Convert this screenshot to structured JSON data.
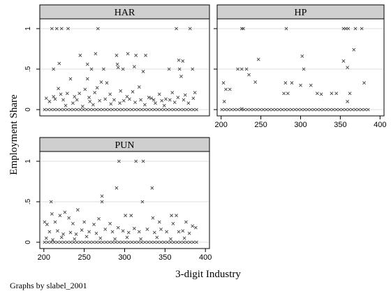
{
  "figure": {
    "ylabel": "Employment Share",
    "xlabel": "3-digit Industry",
    "note": "Graphs by slabel_2001"
  },
  "chart_data": {
    "type": "scatter",
    "marker": "x",
    "xlim": [
      195,
      405
    ],
    "ylim": [
      0,
      1
    ],
    "yticks": [
      0,
      0.5,
      1
    ],
    "yticklabels": [
      "0",
      ".5",
      "1"
    ],
    "xticks": [
      200,
      250,
      300,
      350,
      400
    ],
    "xticklabels": [
      "200",
      "250",
      "300",
      "350",
      "400"
    ],
    "grid": true,
    "panels": [
      {
        "title": "HAR",
        "xticks_shown": false,
        "points": [
          [
            210,
            1
          ],
          [
            216,
            1
          ],
          [
            222,
            1
          ],
          [
            230,
            1
          ],
          [
            267,
            1
          ],
          [
            364,
            1
          ],
          [
            381,
            1
          ],
          [
            212,
            0.5
          ],
          [
            259,
            0.5
          ],
          [
            274,
            0.5
          ],
          [
            298,
            0.5
          ],
          [
            355,
            0.5
          ],
          [
            368,
            0.5
          ],
          [
            384,
            0.5
          ],
          [
            219,
            0.57
          ],
          [
            254,
            0.56
          ],
          [
            291,
            0.56
          ],
          [
            312,
            0.53
          ],
          [
            292,
            0.52
          ],
          [
            245,
            0.67
          ],
          [
            264,
            0.69
          ],
          [
            290,
            0.67
          ],
          [
            304,
            0.69
          ],
          [
            314,
            0.67
          ],
          [
            326,
            0.67
          ],
          [
            367,
            0.61
          ],
          [
            372,
            0.6
          ],
          [
            233,
            0.38
          ],
          [
            254,
            0.38
          ],
          [
            323,
            0.47
          ],
          [
            370,
            0.41
          ],
          [
            218,
            0.26
          ],
          [
            221,
            0.19
          ],
          [
            229,
            0.2
          ],
          [
            238,
            0.16
          ],
          [
            244,
            0.2
          ],
          [
            251,
            0.25
          ],
          [
            256,
            0.15
          ],
          [
            263,
            0.21
          ],
          [
            266,
            0.27
          ],
          [
            271,
            0.34
          ],
          [
            278,
            0.33
          ],
          [
            282,
            0.19
          ],
          [
            295,
            0.23
          ],
          [
            303,
            0.16
          ],
          [
            310,
            0.22
          ],
          [
            318,
            0.28
          ],
          [
            330,
            0.15
          ],
          [
            336,
            0.12
          ],
          [
            343,
            0.19
          ],
          [
            351,
            0.13
          ],
          [
            359,
            0.21
          ],
          [
            375,
            0.18
          ],
          [
            387,
            0.21
          ],
          [
            203,
            0.14
          ],
          [
            207,
            0.1
          ],
          [
            212,
            0.16
          ],
          [
            214,
            0.13
          ],
          [
            224,
            0.12
          ],
          [
            227,
            0.05
          ],
          [
            236,
            0.08
          ],
          [
            241,
            0.12
          ],
          [
            248,
            0.04
          ],
          [
            257,
            0.1
          ],
          [
            261,
            0.06
          ],
          [
            269,
            0.11
          ],
          [
            276,
            0.13
          ],
          [
            283,
            0.07
          ],
          [
            287,
            0.12
          ],
          [
            294,
            0.08
          ],
          [
            299,
            0.11
          ],
          [
            306,
            0.13
          ],
          [
            313,
            0.09
          ],
          [
            320,
            0.12
          ],
          [
            325,
            0.06
          ],
          [
            333,
            0.14
          ],
          [
            338,
            0.08
          ],
          [
            346,
            0.11
          ],
          [
            349,
            0.05
          ],
          [
            356,
            0.12
          ],
          [
            362,
            0.09
          ],
          [
            366,
            0.15
          ],
          [
            373,
            0.12
          ],
          [
            379,
            0.08
          ],
          [
            385,
            0.14
          ],
          [
            201,
            0
          ],
          [
            205,
            0
          ],
          [
            209,
            0
          ],
          [
            213,
            0
          ],
          [
            217,
            0
          ],
          [
            221,
            0
          ],
          [
            225,
            0
          ],
          [
            229,
            0
          ],
          [
            233,
            0
          ],
          [
            237,
            0
          ],
          [
            241,
            0
          ],
          [
            245,
            0
          ],
          [
            249,
            0
          ],
          [
            253,
            0
          ],
          [
            257,
            0
          ],
          [
            261,
            0
          ],
          [
            265,
            0
          ],
          [
            269,
            0
          ],
          [
            273,
            0
          ],
          [
            277,
            0
          ],
          [
            281,
            0
          ],
          [
            285,
            0
          ],
          [
            289,
            0
          ],
          [
            293,
            0
          ],
          [
            297,
            0
          ],
          [
            301,
            0
          ],
          [
            305,
            0
          ],
          [
            309,
            0
          ],
          [
            313,
            0
          ],
          [
            317,
            0
          ],
          [
            321,
            0
          ],
          [
            325,
            0
          ],
          [
            329,
            0
          ],
          [
            333,
            0
          ],
          [
            337,
            0
          ],
          [
            341,
            0
          ],
          [
            345,
            0
          ],
          [
            349,
            0
          ],
          [
            353,
            0
          ],
          [
            357,
            0
          ],
          [
            361,
            0
          ],
          [
            365,
            0
          ],
          [
            369,
            0
          ],
          [
            373,
            0
          ],
          [
            377,
            0
          ],
          [
            381,
            0
          ],
          [
            385,
            0
          ],
          [
            389,
            0
          ]
        ]
      },
      {
        "title": "HP",
        "xticks_shown": true,
        "points": [
          [
            226,
            1
          ],
          [
            228,
            1
          ],
          [
            282,
            1
          ],
          [
            354,
            1
          ],
          [
            357,
            1
          ],
          [
            360,
            1
          ],
          [
            369,
            1
          ],
          [
            377,
            1
          ],
          [
            221,
            0.5
          ],
          [
            226,
            0.5
          ],
          [
            232,
            0.5
          ],
          [
            304,
            0.5
          ],
          [
            359,
            0.52
          ],
          [
            247,
            0.62
          ],
          [
            302,
            0.66
          ],
          [
            354,
            0.6
          ],
          [
            367,
            0.74
          ],
          [
            203,
            0.33
          ],
          [
            281,
            0.33
          ],
          [
            289,
            0.33
          ],
          [
            300,
            0.3
          ],
          [
            313,
            0.3
          ],
          [
            380,
            0.33
          ],
          [
            206,
            0.25
          ],
          [
            211,
            0.25
          ],
          [
            235,
            0.43
          ],
          [
            243,
            0.34
          ],
          [
            279,
            0.2
          ],
          [
            284,
            0.2
          ],
          [
            321,
            0.2
          ],
          [
            326,
            0.19
          ],
          [
            339,
            0.2
          ],
          [
            345,
            0.2
          ],
          [
            362,
            0.2
          ],
          [
            204,
            0.1
          ],
          [
            359,
            0.1
          ],
          [
            226,
            0.01
          ],
          [
            201,
            0
          ],
          [
            205,
            0
          ],
          [
            209,
            0
          ],
          [
            213,
            0
          ],
          [
            217,
            0
          ],
          [
            221,
            0
          ],
          [
            225,
            0
          ],
          [
            229,
            0
          ],
          [
            233,
            0
          ],
          [
            237,
            0
          ],
          [
            241,
            0
          ],
          [
            245,
            0
          ],
          [
            249,
            0
          ],
          [
            253,
            0
          ],
          [
            257,
            0
          ],
          [
            261,
            0
          ],
          [
            265,
            0
          ],
          [
            269,
            0
          ],
          [
            273,
            0
          ],
          [
            277,
            0
          ],
          [
            281,
            0
          ],
          [
            285,
            0
          ],
          [
            289,
            0
          ],
          [
            293,
            0
          ],
          [
            297,
            0
          ],
          [
            301,
            0
          ],
          [
            305,
            0
          ],
          [
            309,
            0
          ],
          [
            313,
            0
          ],
          [
            317,
            0
          ],
          [
            321,
            0
          ],
          [
            325,
            0
          ],
          [
            329,
            0
          ],
          [
            333,
            0
          ],
          [
            337,
            0
          ],
          [
            341,
            0
          ],
          [
            345,
            0
          ],
          [
            349,
            0
          ],
          [
            353,
            0
          ],
          [
            357,
            0
          ],
          [
            361,
            0
          ],
          [
            365,
            0
          ],
          [
            369,
            0
          ],
          [
            373,
            0
          ],
          [
            377,
            0
          ],
          [
            381,
            0
          ],
          [
            385,
            0
          ]
        ]
      },
      {
        "title": "PUN",
        "xticks_shown": true,
        "points": [
          [
            293,
            1
          ],
          [
            314,
            1
          ],
          [
            323,
            1
          ],
          [
            290,
            0.67
          ],
          [
            334,
            0.67
          ],
          [
            272,
            0.57
          ],
          [
            272,
            0.5
          ],
          [
            209,
            0.5
          ],
          [
            322,
            0.5
          ],
          [
            210,
            0.35
          ],
          [
            231,
            0.3
          ],
          [
            242,
            0.4
          ],
          [
            301,
            0.33
          ],
          [
            308,
            0.33
          ],
          [
            358,
            0.33
          ],
          [
            364,
            0.33
          ],
          [
            335,
            0.3
          ],
          [
            201,
            0.25
          ],
          [
            204,
            0.22
          ],
          [
            214,
            0.25
          ],
          [
            220,
            0.33
          ],
          [
            226,
            0.37
          ],
          [
            236,
            0.23
          ],
          [
            250,
            0.25
          ],
          [
            262,
            0.22
          ],
          [
            268,
            0.29
          ],
          [
            282,
            0.23
          ],
          [
            343,
            0.25
          ],
          [
            360,
            0.23
          ],
          [
            376,
            0.25
          ],
          [
            384,
            0.2
          ],
          [
            388,
            0.18
          ],
          [
            207,
            0.13
          ],
          [
            217,
            0.14
          ],
          [
            224,
            0.1
          ],
          [
            233,
            0.12
          ],
          [
            240,
            0.1
          ],
          [
            247,
            0.15
          ],
          [
            256,
            0.13
          ],
          [
            265,
            0.11
          ],
          [
            276,
            0.16
          ],
          [
            285,
            0.13
          ],
          [
            292,
            0.18
          ],
          [
            298,
            0.14
          ],
          [
            305,
            0.12
          ],
          [
            312,
            0.17
          ],
          [
            318,
            0.13
          ],
          [
            328,
            0.16
          ],
          [
            337,
            0.12
          ],
          [
            345,
            0.16
          ],
          [
            352,
            0.13
          ],
          [
            367,
            0.13
          ],
          [
            372,
            0.14
          ],
          [
            380,
            0.11
          ],
          [
            203,
            0.05
          ],
          [
            211,
            0.03
          ],
          [
            222,
            0.06
          ],
          [
            238,
            0.04
          ],
          [
            253,
            0.07
          ],
          [
            270,
            0.05
          ],
          [
            288,
            0.04
          ],
          [
            303,
            0.06
          ],
          [
            320,
            0.04
          ],
          [
            340,
            0.06
          ],
          [
            357,
            0.04
          ],
          [
            374,
            0.05
          ],
          [
            201,
            0
          ],
          [
            205,
            0
          ],
          [
            209,
            0
          ],
          [
            213,
            0
          ],
          [
            217,
            0
          ],
          [
            221,
            0
          ],
          [
            225,
            0
          ],
          [
            229,
            0
          ],
          [
            233,
            0
          ],
          [
            237,
            0
          ],
          [
            241,
            0
          ],
          [
            245,
            0
          ],
          [
            249,
            0
          ],
          [
            253,
            0
          ],
          [
            257,
            0
          ],
          [
            261,
            0
          ],
          [
            265,
            0
          ],
          [
            269,
            0
          ],
          [
            273,
            0
          ],
          [
            277,
            0
          ],
          [
            281,
            0
          ],
          [
            285,
            0
          ],
          [
            289,
            0
          ],
          [
            293,
            0
          ],
          [
            297,
            0
          ],
          [
            301,
            0
          ],
          [
            305,
            0
          ],
          [
            309,
            0
          ],
          [
            313,
            0
          ],
          [
            317,
            0
          ],
          [
            321,
            0
          ],
          [
            325,
            0
          ],
          [
            329,
            0
          ],
          [
            333,
            0
          ],
          [
            337,
            0
          ],
          [
            341,
            0
          ],
          [
            345,
            0
          ],
          [
            349,
            0
          ],
          [
            353,
            0
          ],
          [
            357,
            0
          ],
          [
            361,
            0
          ],
          [
            365,
            0
          ],
          [
            369,
            0
          ],
          [
            373,
            0
          ],
          [
            377,
            0
          ],
          [
            381,
            0
          ],
          [
            385,
            0
          ],
          [
            389,
            0
          ]
        ]
      }
    ]
  }
}
